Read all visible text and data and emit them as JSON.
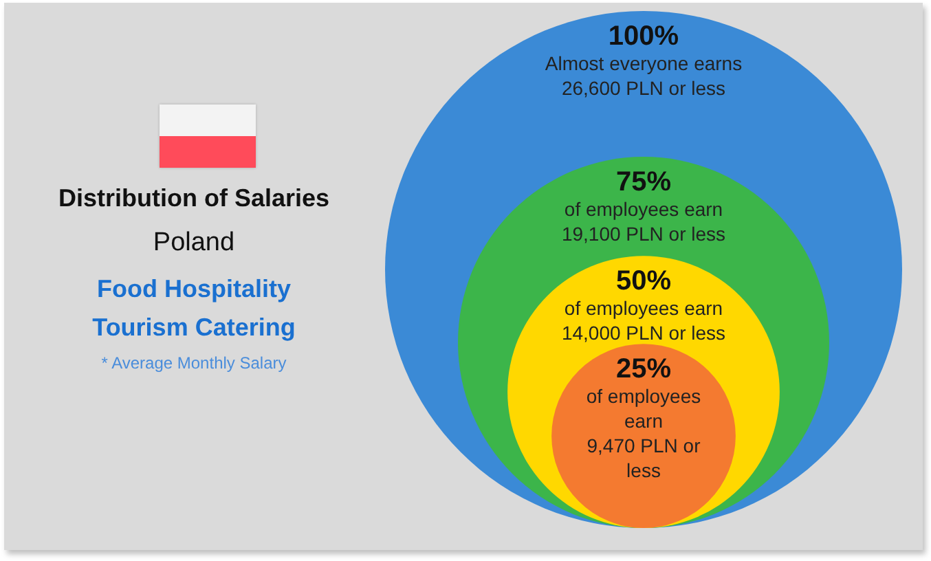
{
  "chart_data": {
    "type": "other",
    "title": "Distribution of Salaries",
    "subtitle": "Poland",
    "categories": [
      "100%",
      "75%",
      "50%",
      "25%"
    ],
    "values": [
      26600,
      19100,
      14000,
      9470
    ],
    "value_labels": [
      "Almost everyone earns 26,600 PLN or less",
      "of employees earn 19,100 PLN or less",
      "of employees earn 14,000 PLN or less",
      "of employees earn 9,470 PLN or less"
    ],
    "colors": [
      "#3b8ad6",
      "#3cb54a",
      "#ffd800",
      "#f47a30"
    ],
    "annotations": [
      "Food Hospitality Tourism Catering",
      "* Average Monthly Salary"
    ]
  }
}
